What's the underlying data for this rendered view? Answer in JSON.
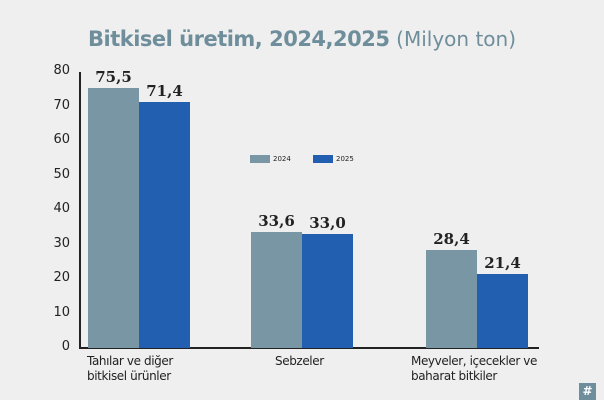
{
  "title": {
    "bold": "Bitkisel üretim, 2024,2025",
    "unit": "(Milyon ton)"
  },
  "colors": {
    "series_2024": "#7896a3",
    "series_2025": "#225fb0",
    "title": "#6f8e9b",
    "background": "#efefef"
  },
  "legend": {
    "items": [
      {
        "label": "2024",
        "color": "#7896a3"
      },
      {
        "label": "2025",
        "color": "#225fb0"
      }
    ]
  },
  "yaxis": {
    "ticks": [
      "0",
      "10",
      "20",
      "30",
      "40",
      "50",
      "60",
      "70",
      "80"
    ]
  },
  "categories": [
    {
      "line1": "Tahılar ve diğer",
      "line2": "bitkisel ürünler"
    },
    {
      "line1": "Sebzeler",
      "line2": ""
    },
    {
      "line1": "Meyveler, içecekler ve",
      "line2": "baharat bitkiler"
    }
  ],
  "value_labels": [
    [
      "75,5",
      "71,4"
    ],
    [
      "33,6",
      "33,0"
    ],
    [
      "28,4",
      "21,4"
    ]
  ],
  "badge": "#",
  "chart_data": {
    "type": "bar",
    "title": "Bitkisel üretim, 2024,2025 (Milyon ton)",
    "categories": [
      "Tahılar ve diğer bitkisel ürünler",
      "Sebzeler",
      "Meyveler, içecekler ve baharat bitkiler"
    ],
    "series": [
      {
        "name": "2024",
        "values": [
          75.5,
          33.6,
          28.4
        ]
      },
      {
        "name": "2025",
        "values": [
          71.4,
          33.0,
          21.4
        ]
      }
    ],
    "xlabel": "",
    "ylabel": "Milyon ton",
    "ylim": [
      0,
      80
    ],
    "yticks": [
      0,
      10,
      20,
      30,
      40,
      50,
      60,
      70,
      80
    ],
    "grid": false,
    "legend_position": "center-top"
  }
}
